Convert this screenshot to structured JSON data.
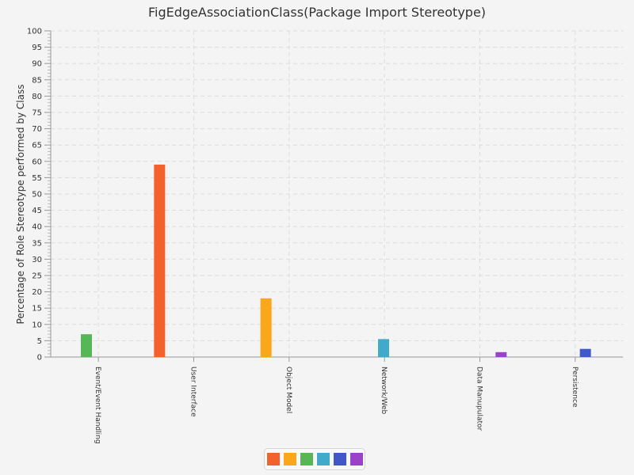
{
  "chart_data": {
    "type": "bar",
    "title": "FigEdgeAssociationClass(Package Import Stereotype)",
    "xlabel": "",
    "ylabel": "Percentage of Role Stereotype performed by Class",
    "ylim": [
      0,
      100
    ],
    "major_tick_step": 5,
    "minor_tick_step": 1,
    "grid": true,
    "legend_position": "bottom",
    "categories": [
      "Event/Event Handling",
      "User Interface",
      "Object Model",
      "Network/Web",
      "Data Manupulator",
      "Persistence"
    ],
    "series": [
      {
        "color": "#f3622d",
        "values": [
          0,
          59,
          0,
          0,
          0,
          0
        ]
      },
      {
        "color": "#fba71b",
        "values": [
          0,
          0,
          18,
          0,
          0,
          0
        ]
      },
      {
        "color": "#57b757",
        "values": [
          7,
          0,
          0,
          0,
          0,
          0
        ]
      },
      {
        "color": "#41a9c9",
        "values": [
          0,
          0,
          0,
          5.5,
          0,
          0
        ]
      },
      {
        "color": "#4258c9",
        "values": [
          0,
          0,
          0,
          0,
          0,
          2.5
        ]
      },
      {
        "color": "#9a42c8",
        "values": [
          0,
          0,
          0,
          0,
          1.5,
          0
        ]
      }
    ]
  }
}
